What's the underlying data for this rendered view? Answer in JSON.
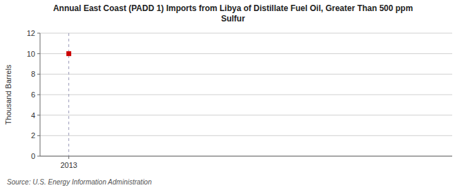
{
  "chart_data": {
    "type": "scatter",
    "title": "Annual East Coast (PADD 1) Imports from Libya of Distillate Fuel Oil, Greater Than 500 ppm\nSulfur",
    "ylabel": "Thousand Barrels",
    "source": "Source: U.S. Energy Information Administration",
    "x": [
      2013
    ],
    "values": [
      10
    ],
    "color": "#cc0000",
    "marker": "square",
    "xlim": [
      2012.7,
      2017
    ],
    "xticks": [
      2013
    ],
    "ylim": [
      0,
      12
    ],
    "yticks": [
      0,
      2,
      4,
      6,
      8,
      10,
      12
    ],
    "grid": true
  }
}
